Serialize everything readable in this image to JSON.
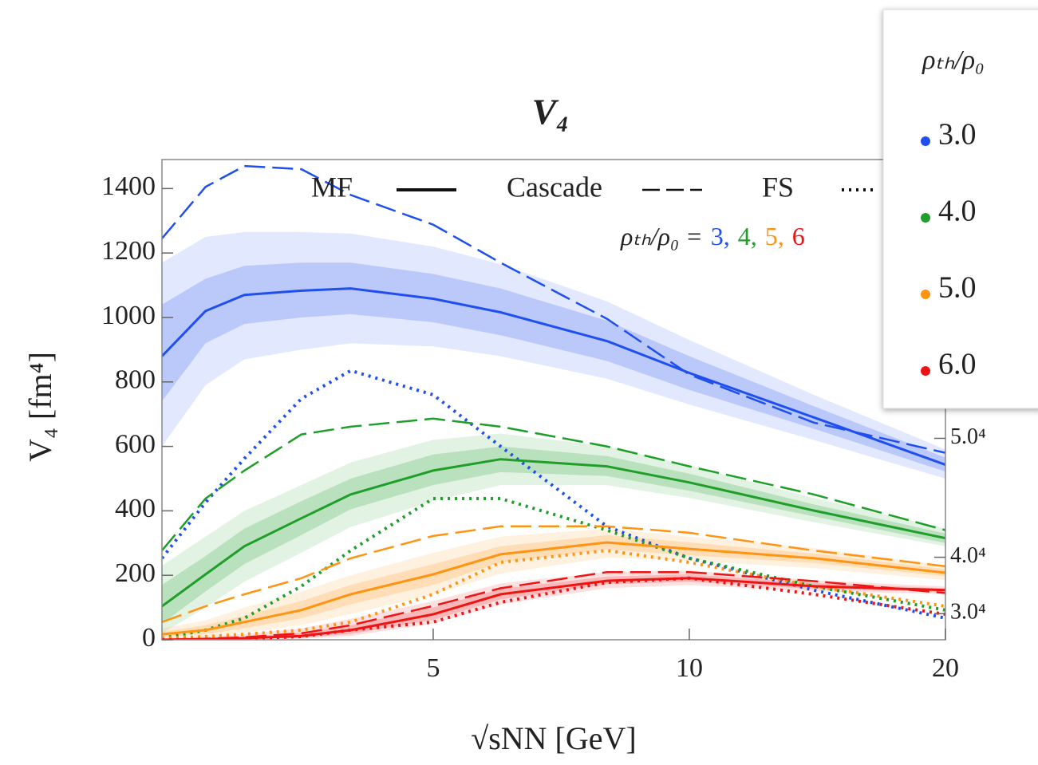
{
  "chart_data": {
    "type": "line",
    "title": "V₄",
    "x_label": "√sNN  [GeV]",
    "y_label": "V₄ [fm⁴]",
    "x_scale": "log",
    "xlim": [
      2.4,
      20
    ],
    "xticks": [
      5,
      10,
      20
    ],
    "ylim": [
      0,
      1490
    ],
    "yticks": [
      0,
      200,
      400,
      600,
      800,
      1000,
      1200,
      1400
    ],
    "y2lim": [
      0,
      1490
    ],
    "y2ticks": [
      {
        "value": 81,
        "label": "3.0⁴"
      },
      {
        "value": 256,
        "label": "4.0⁴"
      },
      {
        "value": 625,
        "label": "5.0⁴"
      }
    ],
    "style_legend": [
      "MF",
      "Cascade",
      "FS"
    ],
    "ratio_annotation": "ρₜₕ/ρ₀ =",
    "legend_title": "ρₜₕ/ρ₀",
    "x": [
      2.4,
      2.7,
      3,
      3.5,
      4,
      5,
      6,
      8,
      10,
      14,
      20
    ],
    "series": [
      {
        "name": "3.0",
        "tag": "3,",
        "color": "#1f4fee",
        "values": [
          880,
          1020,
          1070,
          1083,
          1090,
          1058,
          1016,
          927,
          828,
          690,
          543
        ],
        "cascade": [
          1245,
          1405,
          1470,
          1460,
          1380,
          1288,
          1170,
          996,
          823,
          674,
          580
        ],
        "fs": [
          253,
          426,
          562,
          748,
          835,
          760,
          600,
          352,
          253,
          154,
          67
        ],
        "outer_low": [
          600,
          790,
          870,
          900,
          920,
          910,
          880,
          810,
          730,
          620,
          500
        ],
        "outer_high": [
          1170,
          1250,
          1265,
          1265,
          1260,
          1220,
          1165,
          1050,
          930,
          760,
          590
        ],
        "inner_low": [
          740,
          920,
          980,
          1000,
          1010,
          985,
          945,
          865,
          775,
          655,
          522
        ],
        "inner_high": [
          1040,
          1120,
          1160,
          1170,
          1170,
          1135,
          1090,
          990,
          880,
          725,
          565
        ]
      },
      {
        "name": "4.0",
        "tag": "4,",
        "color": "#1f9e2a",
        "values": [
          104,
          203,
          290,
          377,
          451,
          525,
          560,
          538,
          488,
          401,
          315
        ],
        "cascade": [
          277,
          438,
          525,
          637,
          661,
          686,
          661,
          600,
          538,
          451,
          340
        ],
        "fs": [
          5,
          30,
          67,
          166,
          277,
          438,
          438,
          340,
          253,
          166,
          92
        ],
        "outer_low": [
          20,
          100,
          180,
          270,
          350,
          430,
          480,
          480,
          440,
          365,
          290
        ],
        "outer_high": [
          230,
          320,
          400,
          480,
          550,
          620,
          640,
          600,
          540,
          440,
          345
        ],
        "inner_low": [
          50,
          150,
          235,
          325,
          405,
          480,
          520,
          508,
          462,
          383,
          300
        ],
        "inner_high": [
          170,
          260,
          345,
          430,
          500,
          575,
          600,
          570,
          515,
          420,
          330
        ]
      },
      {
        "name": "5.0",
        "tag": "5,",
        "color": "#ff9412",
        "values": [
          17,
          30,
          55,
          92,
          141,
          203,
          265,
          302,
          282,
          253,
          208
        ],
        "cascade": [
          55,
          104,
          141,
          191,
          253,
          322,
          352,
          352,
          332,
          277,
          228
        ],
        "fs": [
          5,
          10,
          17,
          30,
          55,
          141,
          240,
          277,
          240,
          166,
          104
        ],
        "outer_low": [
          0,
          8,
          22,
          45,
          80,
          140,
          205,
          255,
          245,
          222,
          185
        ],
        "outer_high": [
          35,
          60,
          100,
          150,
          200,
          270,
          320,
          345,
          320,
          285,
          230
        ],
        "inner_low": [
          8,
          18,
          36,
          66,
          110,
          170,
          240,
          280,
          262,
          238,
          197
        ],
        "inner_high": [
          25,
          45,
          75,
          120,
          170,
          235,
          290,
          325,
          302,
          268,
          219
        ]
      },
      {
        "name": "6.0",
        "tag": "6",
        "color": "#ee1414",
        "values": [
          0,
          2,
          5,
          12,
          30,
          79,
          141,
          183,
          191,
          166,
          154
        ],
        "cascade": [
          0,
          3,
          8,
          20,
          45,
          105,
          160,
          210,
          210,
          182,
          145
        ],
        "fs": [
          0,
          1,
          3,
          10,
          30,
          55,
          116,
          178,
          191,
          141,
          79
        ],
        "outer_low": [
          0,
          0,
          0,
          3,
          12,
          50,
          110,
          160,
          170,
          150,
          142
        ],
        "outer_high": [
          5,
          10,
          18,
          35,
          65,
          120,
          175,
          210,
          215,
          185,
          165
        ],
        "inner_low": [
          0,
          1,
          2,
          6,
          18,
          62,
          125,
          172,
          180,
          158,
          148
        ],
        "inner_high": [
          2,
          5,
          10,
          22,
          45,
          100,
          158,
          196,
          203,
          176,
          160
        ]
      }
    ]
  }
}
